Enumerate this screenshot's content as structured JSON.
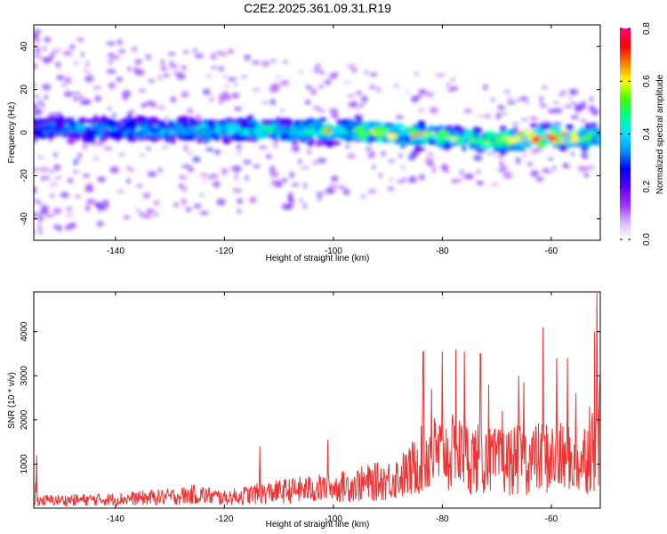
{
  "chart_data": [
    {
      "type": "heatmap",
      "title": "C2E2.2025.361.09.31.R19",
      "xlabel": "Height of straight line (km)",
      "ylabel": "Frequency (Hz)",
      "xlim": [
        -155,
        -51
      ],
      "ylim": [
        -50,
        50
      ],
      "xticks": [
        -140,
        -120,
        -100,
        -80,
        -60
      ],
      "yticks": [
        -40,
        -20,
        0,
        20,
        40
      ],
      "colorbar": {
        "label": "Normalized spectral amplitude",
        "range": [
          0,
          0.8
        ],
        "ticks": [
          "0.0",
          "0.2",
          "0.4",
          "0.6",
          "0.8"
        ],
        "colormap": [
          "#ffffff",
          "#d9b3ff",
          "#9b30ff",
          "#5a00ff",
          "#0000ff",
          "#0090ff",
          "#00e0ff",
          "#00ff90",
          "#40ff00",
          "#ffff00",
          "#ff8000",
          "#ff0000",
          "#ff0080"
        ]
      },
      "band": {
        "center_hz": [
          [
            -155,
            2
          ],
          [
            -130,
            1.5
          ],
          [
            -110,
            1
          ],
          [
            -95,
            0.5
          ],
          [
            -85,
            -1
          ],
          [
            -75,
            -3
          ],
          [
            -70,
            -4
          ],
          [
            -60,
            -2
          ],
          [
            -51,
            -2
          ]
        ],
        "half_width_hz": 7,
        "peak_amplitude_by_height": [
          [
            -155,
            0.3
          ],
          [
            -130,
            0.35
          ],
          [
            -110,
            0.4
          ],
          [
            -100,
            0.5
          ],
          [
            -85,
            0.6
          ],
          [
            -70,
            0.5
          ],
          [
            -60,
            0.75
          ],
          [
            -51,
            0.45
          ]
        ]
      },
      "scatter_density": "higher at low heights (-150 to -125 km), sparse above -90 km"
    },
    {
      "type": "line",
      "xlabel": "Height of straight line (km)",
      "ylabel": "SNR (10 * v/v)",
      "xlim": [
        -155,
        -51
      ],
      "ylim": [
        0,
        4900
      ],
      "xticks": [
        -140,
        -120,
        -100,
        -80,
        -60
      ],
      "yticks": [
        1000,
        2000,
        3000,
        4000
      ],
      "color": "#ee3333",
      "envelope": [
        [
          -155,
          300
        ],
        [
          -140,
          350
        ],
        [
          -130,
          450
        ],
        [
          -125,
          550
        ],
        [
          -120,
          400
        ],
        [
          -115,
          550
        ],
        [
          -110,
          650
        ],
        [
          -105,
          750
        ],
        [
          -100,
          800
        ],
        [
          -95,
          950
        ],
        [
          -90,
          1100
        ],
        [
          -86,
          1400
        ],
        [
          -84,
          2000
        ],
        [
          -80,
          2200
        ],
        [
          -75,
          2000
        ],
        [
          -70,
          1800
        ],
        [
          -65,
          1900
        ],
        [
          -60,
          2000
        ],
        [
          -55,
          1800
        ],
        [
          -52,
          2400
        ],
        [
          -51,
          3000
        ]
      ],
      "peaks": [
        [
          -154.5,
          1200
        ],
        [
          -113.5,
          1400
        ],
        [
          -101,
          1550
        ],
        [
          -83.5,
          3550
        ],
        [
          -82,
          2700
        ],
        [
          -80,
          3550
        ],
        [
          -77.5,
          3600
        ],
        [
          -76,
          3550
        ],
        [
          -73,
          3500
        ],
        [
          -71.5,
          2800
        ],
        [
          -69,
          2200
        ],
        [
          -66,
          3000
        ],
        [
          -65,
          2850
        ],
        [
          -61.5,
          4100
        ],
        [
          -59,
          3400
        ],
        [
          -57,
          3400
        ],
        [
          -55.5,
          2600
        ],
        [
          -53,
          2300
        ],
        [
          -52,
          4000
        ],
        [
          -51.6,
          4880
        ],
        [
          -51,
          3000
        ]
      ]
    }
  ]
}
